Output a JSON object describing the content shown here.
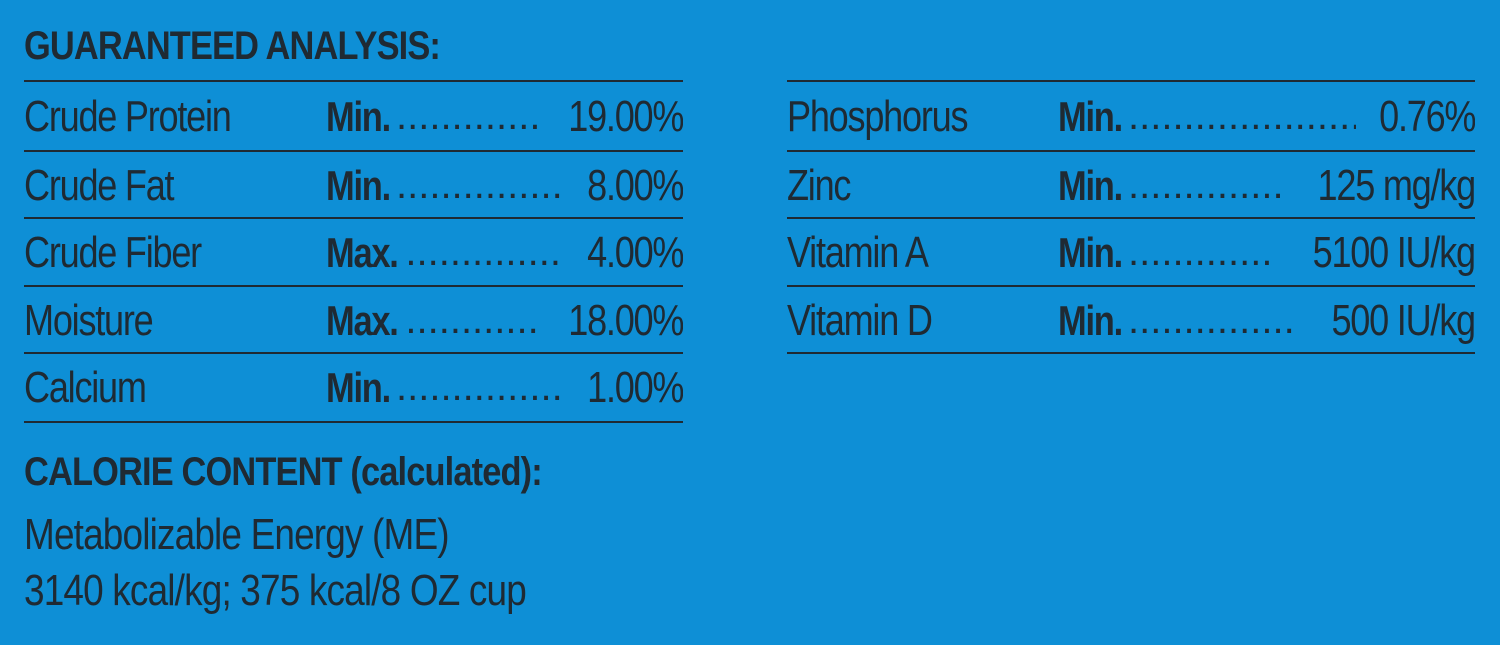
{
  "guaranteed_analysis": {
    "heading": "GUARANTEED ANALYSIS:",
    "left_rows": [
      {
        "nutrient": "Crude Protein",
        "qualifier": "Min.",
        "value": "19.00%"
      },
      {
        "nutrient": "Crude Fat",
        "qualifier": "Min.",
        "value": "8.00%"
      },
      {
        "nutrient": "Crude Fiber",
        "qualifier": "Max.",
        "value": "4.00%"
      },
      {
        "nutrient": "Moisture",
        "qualifier": "Max.",
        "value": "18.00%"
      },
      {
        "nutrient": "Calcium",
        "qualifier": "Min.",
        "value": "1.00%"
      }
    ],
    "right_rows": [
      {
        "nutrient": "Phosphorus",
        "qualifier": "Min.",
        "value": "0.76%"
      },
      {
        "nutrient": "Zinc",
        "qualifier": "Min.",
        "value": "125 mg/kg"
      },
      {
        "nutrient": "Vitamin A",
        "qualifier": "Min.",
        "value": "5100 IU/kg"
      },
      {
        "nutrient": "Vitamin D",
        "qualifier": "Min.",
        "value": "500 IU/kg"
      }
    ]
  },
  "calorie_content": {
    "heading": "CALORIE CONTENT (calculated):",
    "line1": "Metabolizable Energy (ME)",
    "line2": "3140 kcal/kg; 375 kcal/8 OZ cup"
  },
  "colors": {
    "background": "#0e8fd6",
    "text": "#1f2a33"
  }
}
